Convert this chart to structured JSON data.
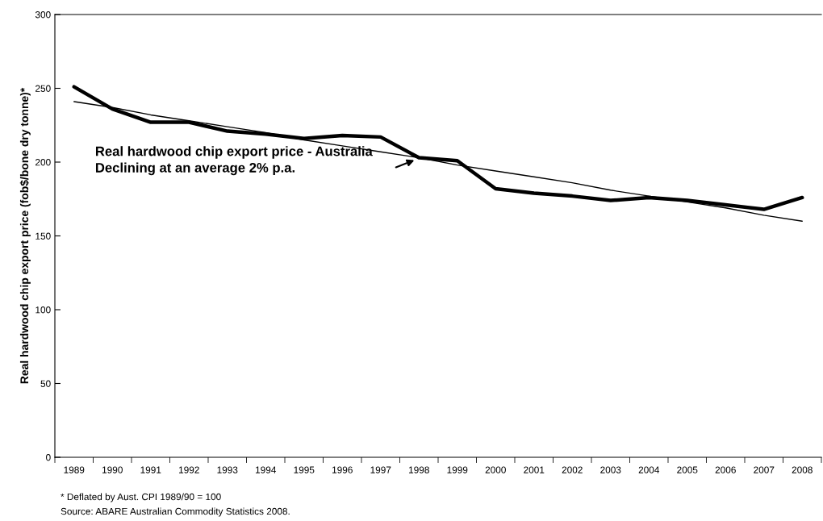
{
  "chart_data": {
    "type": "line",
    "ylabel": "Real hardwood chip export price (fob$/bone dry tonne)*",
    "categories": [
      "1989",
      "1990",
      "1991",
      "1992",
      "1993",
      "1994",
      "1995",
      "1996",
      "1997",
      "1998",
      "1999",
      "2000",
      "2001",
      "2002",
      "2003",
      "2004",
      "2005",
      "2006",
      "2007",
      "2008"
    ],
    "series": [
      {
        "color": "#000000",
        "values": [
          251,
          236,
          227,
          227,
          221,
          219,
          216,
          218,
          217,
          203,
          201,
          182,
          179,
          177,
          174,
          176,
          174,
          171,
          168,
          176
        ]
      },
      {
        "type": "line",
        "color": "#000000",
        "values": [
          241,
          237,
          232,
          228,
          224,
          220,
          215,
          211,
          207,
          203,
          198,
          194,
          190,
          186,
          181,
          177,
          173,
          169,
          164,
          160
        ]
      }
    ],
    "ylim": [
      0,
      300
    ],
    "yticks": [
      0,
      50,
      100,
      150,
      200,
      250,
      300
    ],
    "grid": false,
    "legend": false,
    "annotations": [
      "Real hardwood chip export price - Australia\nDeclining at an average 2% p.a.",
      "* Deflated by Aust. CPI 1989/90 = 100",
      "Source: ABARE Australian Commodity Statistics 2008."
    ]
  }
}
